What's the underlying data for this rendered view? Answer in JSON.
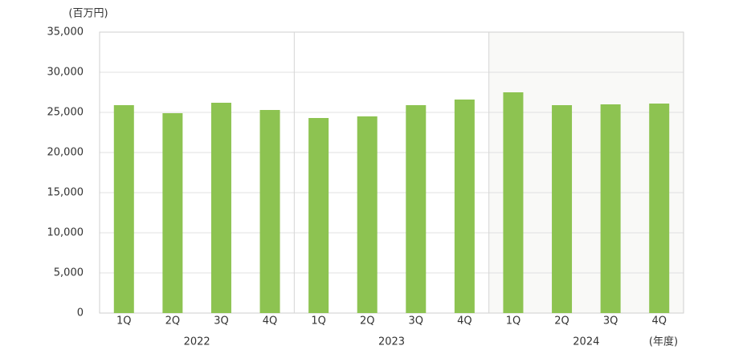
{
  "chart_data": {
    "type": "bar",
    "y_unit": "(百万円)",
    "x_unit": "(年度)",
    "categories": [
      "1Q",
      "2Q",
      "3Q",
      "4Q",
      "1Q",
      "2Q",
      "3Q",
      "4Q",
      "1Q",
      "2Q",
      "3Q",
      "4Q"
    ],
    "groups": [
      "2022",
      "2023",
      "2024"
    ],
    "values": [
      25900,
      24900,
      26200,
      25300,
      24300,
      24500,
      25900,
      26600,
      27500,
      25900,
      26000,
      26100
    ],
    "color": "#8dc351",
    "ylim": [
      0,
      35000
    ],
    "yticks": [
      0,
      {
        "value": 5000,
        "label": "5,000"
      },
      {
        "value": 10000,
        "label": "10,000"
      },
      {
        "value": 15000,
        "label": "15,000"
      },
      {
        "value": 20000,
        "label": "20,000"
      },
      {
        "value": 25000,
        "label": "25,000"
      },
      {
        "value": 30000,
        "label": "30,000"
      },
      {
        "value": 35000,
        "label": "35,000"
      }
    ],
    "grid": true
  }
}
